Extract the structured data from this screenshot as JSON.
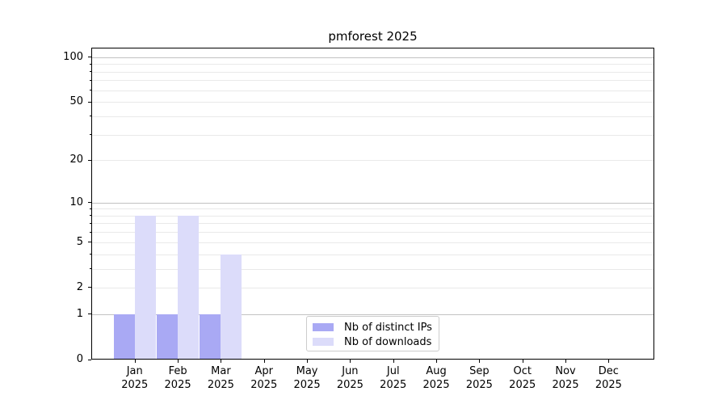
{
  "chart_data": {
    "type": "bar",
    "title": "pmforest 2025",
    "categories": [
      "Jan 2025",
      "Feb 2025",
      "Mar 2025",
      "Apr 2025",
      "May 2025",
      "Jun 2025",
      "Jul 2025",
      "Aug 2025",
      "Sep 2025",
      "Oct 2025",
      "Nov 2025",
      "Dec 2025"
    ],
    "series": [
      {
        "name": "Nb of distinct IPs",
        "color": "#a9a9f4",
        "values": [
          1,
          1,
          1,
          0,
          0,
          0,
          0,
          0,
          0,
          0,
          0,
          0
        ]
      },
      {
        "name": "Nb of downloads",
        "color": "#dcdcfa",
        "values": [
          8,
          8,
          4,
          0,
          0,
          0,
          0,
          0,
          0,
          0,
          0,
          0
        ]
      }
    ],
    "xlabel": "",
    "ylabel": "",
    "y_axis": {
      "scale": "log1p",
      "ticks": [
        0,
        1,
        2,
        5,
        10,
        20,
        50,
        100
      ],
      "minor_ticks": [
        3,
        4,
        6,
        7,
        8,
        9,
        30,
        40,
        60,
        70,
        80,
        90
      ],
      "ylim": [
        0,
        116
      ]
    },
    "grid": "horizontal",
    "legend_position": "lower-center-inside"
  },
  "colors": {
    "major_grid": "#c2c2c2",
    "minor_grid": "#e9e9e9",
    "spine": "#000000",
    "legend_border": "#cccccc"
  }
}
